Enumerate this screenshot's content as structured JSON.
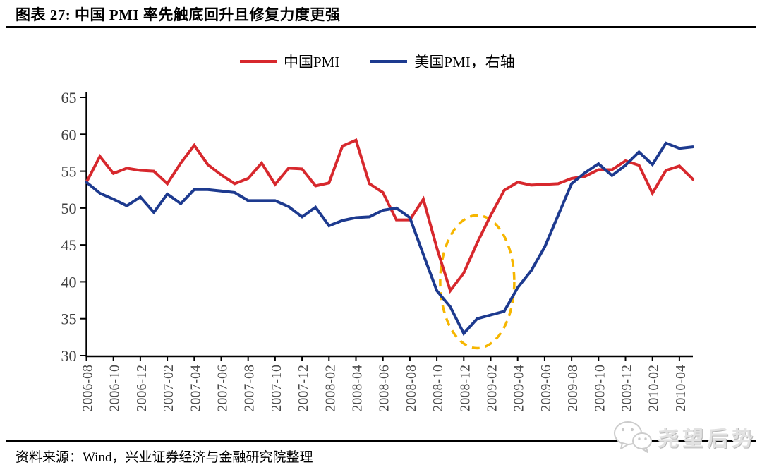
{
  "header": {
    "title": "图表 27: 中国 PMI 率先触底回升且修复力度更强"
  },
  "chart_data": {
    "type": "line",
    "title": "中国 PMI 率先触底回升且修复力度更强",
    "figure_label": "图表 27",
    "grid": false,
    "legend_position": "top",
    "ylim": [
      30,
      65
    ],
    "y_ticks": [
      30,
      35,
      40,
      45,
      50,
      55,
      60,
      65
    ],
    "right_axis_labels_shown": false,
    "x_tick_labels": [
      "2006-08",
      "2006-10",
      "2006-12",
      "2007-02",
      "2007-04",
      "2007-06",
      "2007-08",
      "2007-10",
      "2007-12",
      "2008-02",
      "2008-04",
      "2008-06",
      "2008-08",
      "2008-10",
      "2008-12",
      "2009-02",
      "2009-04",
      "2009-06",
      "2009-08",
      "2009-10",
      "2009-12",
      "2010-02",
      "2010-04"
    ],
    "months": [
      "2006-08",
      "2006-09",
      "2006-10",
      "2006-11",
      "2006-12",
      "2007-01",
      "2007-02",
      "2007-03",
      "2007-04",
      "2007-05",
      "2007-06",
      "2007-07",
      "2007-08",
      "2007-09",
      "2007-10",
      "2007-11",
      "2007-12",
      "2008-01",
      "2008-02",
      "2008-03",
      "2008-04",
      "2008-05",
      "2008-06",
      "2008-07",
      "2008-08",
      "2008-09",
      "2008-10",
      "2008-11",
      "2008-12",
      "2009-01",
      "2009-02",
      "2009-03",
      "2009-04",
      "2009-05",
      "2009-06",
      "2009-07",
      "2009-08",
      "2009-09",
      "2009-10",
      "2009-11",
      "2009-12",
      "2010-01",
      "2010-02",
      "2010-03",
      "2010-04",
      "2010-05"
    ],
    "series": [
      {
        "id": "china-pmi",
        "name": "中国PMI",
        "axis": "left",
        "color": "#d7282d",
        "values": [
          53.5,
          57.0,
          54.7,
          55.4,
          55.1,
          55.0,
          53.3,
          56.1,
          58.5,
          55.9,
          54.5,
          53.3,
          54.0,
          56.1,
          53.2,
          55.4,
          55.3,
          53.0,
          53.4,
          58.4,
          59.2,
          53.3,
          52.1,
          48.4,
          48.4,
          51.2,
          44.6,
          38.8,
          41.2,
          45.3,
          49.0,
          52.4,
          53.5,
          53.1,
          53.2,
          53.3,
          54.0,
          54.3,
          55.2,
          55.2,
          56.4,
          55.8,
          52.0,
          55.1,
          55.7,
          53.9
        ]
      },
      {
        "id": "us-pmi",
        "name": "美国PMI，右轴",
        "axis": "right",
        "color": "#1d3a8f",
        "values": [
          53.5,
          52.0,
          51.2,
          50.3,
          51.5,
          49.4,
          51.9,
          50.6,
          52.5,
          52.5,
          52.3,
          52.1,
          51.0,
          51.0,
          51.0,
          50.2,
          48.8,
          50.1,
          47.6,
          48.3,
          48.7,
          48.8,
          49.7,
          50.0,
          48.7,
          43.7,
          38.8,
          36.6,
          33.0,
          35.0,
          35.5,
          36.0,
          39.2,
          41.5,
          44.7,
          49.0,
          53.3,
          54.8,
          56.0,
          54.4,
          55.8,
          57.6,
          55.9,
          58.8,
          58.1,
          58.3
        ]
      }
    ],
    "annotation": {
      "shape": "dashed-ellipse",
      "color": "#f6b600",
      "center_month": "2009-01",
      "center_value": 40,
      "rx_months": 2.75,
      "ry_units": 9
    }
  },
  "footer": {
    "source": "资料来源：Wind，兴业证券经济与金融研究院整理"
  },
  "watermark": {
    "icon": "wechat-icon",
    "text": "尧望后势"
  }
}
